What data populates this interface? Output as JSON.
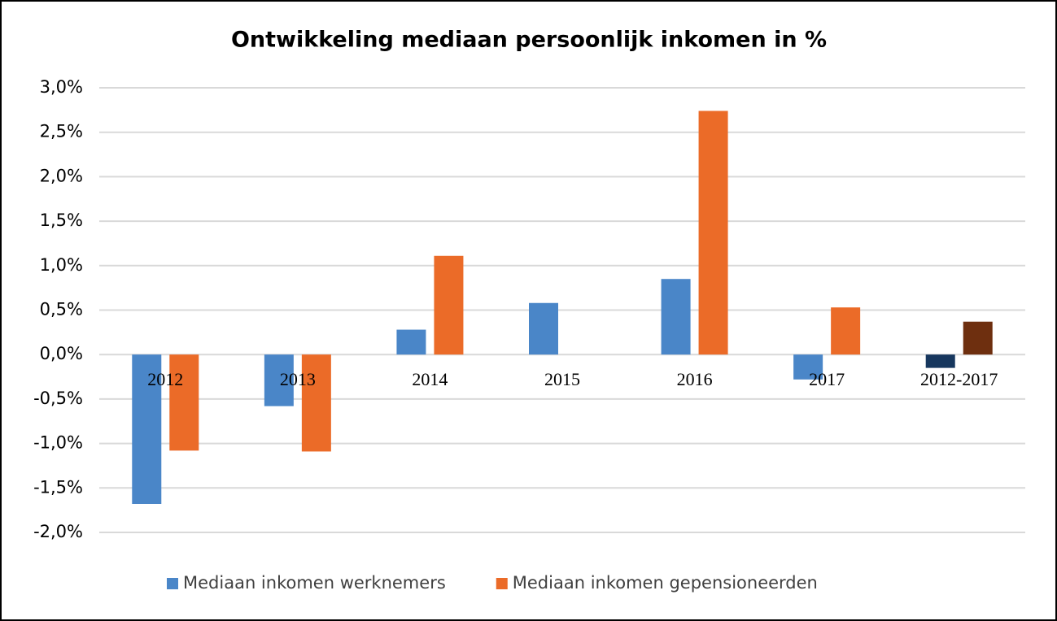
{
  "chart_data": {
    "type": "bar",
    "title": "Ontwikkeling mediaan persoonlijk inkomen in %",
    "categories": [
      "2012",
      "2013",
      "2014",
      "2015",
      "2016",
      "2017",
      "2012-2017"
    ],
    "series": [
      {
        "name": "Mediaan inkomen werknemers",
        "color": "#4a86c8",
        "colors": [
          "#4a86c8",
          "#4a86c8",
          "#4a86c8",
          "#4a86c8",
          "#4a86c8",
          "#4a86c8",
          "#17375e"
        ],
        "values": [
          -1.68,
          -0.58,
          0.28,
          0.58,
          0.85,
          -0.28,
          -0.15
        ]
      },
      {
        "name": "Mediaan inkomen gepensioneerden",
        "color": "#eb6b28",
        "colors": [
          "#eb6b28",
          "#eb6b28",
          "#eb6b28",
          "#eb6b28",
          "#eb6b28",
          "#eb6b28",
          "#6e2f0f"
        ],
        "values": [
          -1.08,
          -1.09,
          1.11,
          null,
          2.74,
          0.53,
          0.37
        ]
      }
    ],
    "ylim": [
      -2,
      3
    ],
    "yticks": [
      {
        "value": -2,
        "label": "-2,0%"
      },
      {
        "value": -1.5,
        "label": "-1,5%"
      },
      {
        "value": -1,
        "label": "-1,0%"
      },
      {
        "value": -0.5,
        "label": "-0,5%"
      },
      {
        "value": 0,
        "label": "0,0%"
      },
      {
        "value": 0.5,
        "label": "0,5%"
      },
      {
        "value": 1,
        "label": "1,0%"
      },
      {
        "value": 1.5,
        "label": "1,5%"
      },
      {
        "value": 2,
        "label": "2,0%"
      },
      {
        "value": 2.5,
        "label": "2,5%"
      },
      {
        "value": 3,
        "label": "3,0%"
      }
    ],
    "grid": true,
    "legend": "bottom"
  }
}
